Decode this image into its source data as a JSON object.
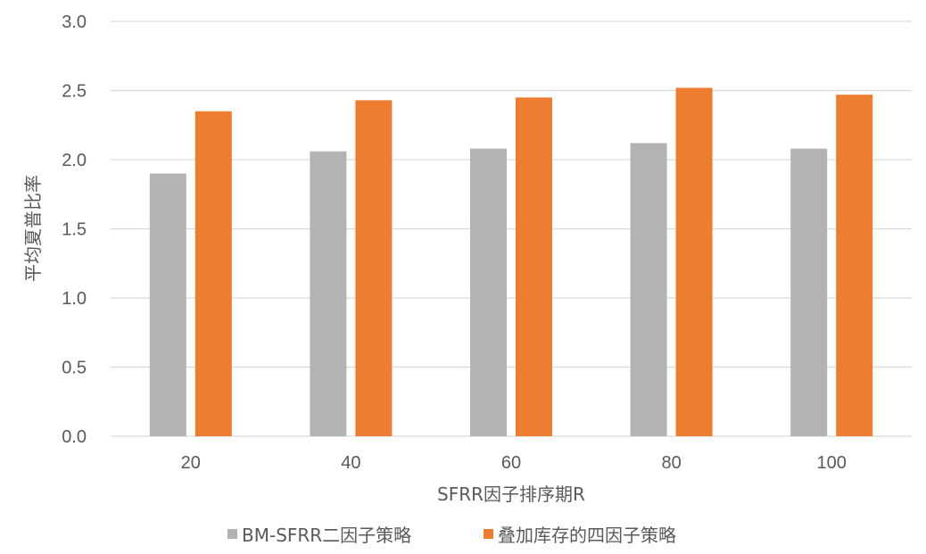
{
  "chart_data": {
    "type": "bar",
    "title": "",
    "xlabel": "SFRR因子排序期R",
    "ylabel": "平均夏普比率",
    "categories": [
      "20",
      "40",
      "60",
      "80",
      "100"
    ],
    "ylim": [
      0,
      3.0
    ],
    "yticks": [
      "0.0",
      "0.5",
      "1.0",
      "1.5",
      "2.0",
      "2.5",
      "3.0"
    ],
    "ytick_values": [
      0,
      0.5,
      1.0,
      1.5,
      2.0,
      2.5,
      3.0
    ],
    "grid": true,
    "legend_position": "bottom",
    "series": [
      {
        "name": "BM-SFRR二因子策略",
        "color": "#b3b3b3",
        "values": [
          1.9,
          2.06,
          2.08,
          2.12,
          2.08
        ]
      },
      {
        "name": "叠加库存的四因子策略",
        "color": "#ed7d31",
        "values": [
          2.35,
          2.43,
          2.45,
          2.52,
          2.47
        ]
      }
    ]
  }
}
